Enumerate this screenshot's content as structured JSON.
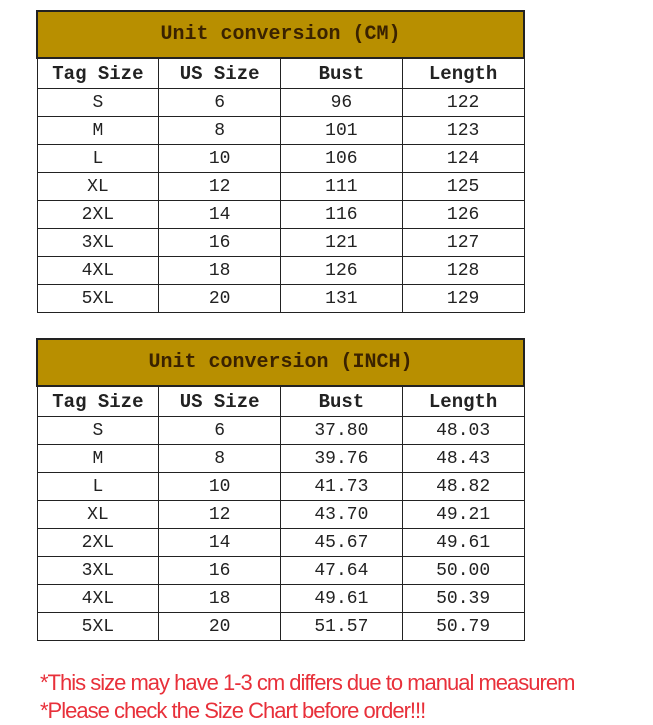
{
  "tables": [
    {
      "title": "Unit conversion (CM)",
      "headers": [
        "Tag Size",
        "US Size",
        "Bust",
        "Length"
      ],
      "rows": [
        [
          "S",
          "6",
          "96",
          "122"
        ],
        [
          "M",
          "8",
          "101",
          "123"
        ],
        [
          "L",
          "10",
          "106",
          "124"
        ],
        [
          "XL",
          "12",
          "111",
          "125"
        ],
        [
          "2XL",
          "14",
          "116",
          "126"
        ],
        [
          "3XL",
          "16",
          "121",
          "127"
        ],
        [
          "4XL",
          "18",
          "126",
          "128"
        ],
        [
          "5XL",
          "20",
          "131",
          "129"
        ]
      ]
    },
    {
      "title": "Unit conversion (INCH)",
      "headers": [
        "Tag Size",
        "US Size",
        "Bust",
        "Length"
      ],
      "rows": [
        [
          "S",
          "6",
          "37.80",
          "48.03"
        ],
        [
          "M",
          "8",
          "39.76",
          "48.43"
        ],
        [
          "L",
          "10",
          "41.73",
          "48.82"
        ],
        [
          "XL",
          "12",
          "43.70",
          "49.21"
        ],
        [
          "2XL",
          "14",
          "45.67",
          "49.61"
        ],
        [
          "3XL",
          "16",
          "47.64",
          "50.00"
        ],
        [
          "4XL",
          "18",
          "49.61",
          "50.39"
        ],
        [
          "5XL",
          "20",
          "51.57",
          "50.79"
        ]
      ]
    }
  ],
  "notes": [
    "*This size may have 1-3 cm differs due to manual measurem",
    "*Please check the Size Chart before order!!!"
  ],
  "colors": {
    "header_band": "#b88f00",
    "note_text": "#e8303a"
  }
}
